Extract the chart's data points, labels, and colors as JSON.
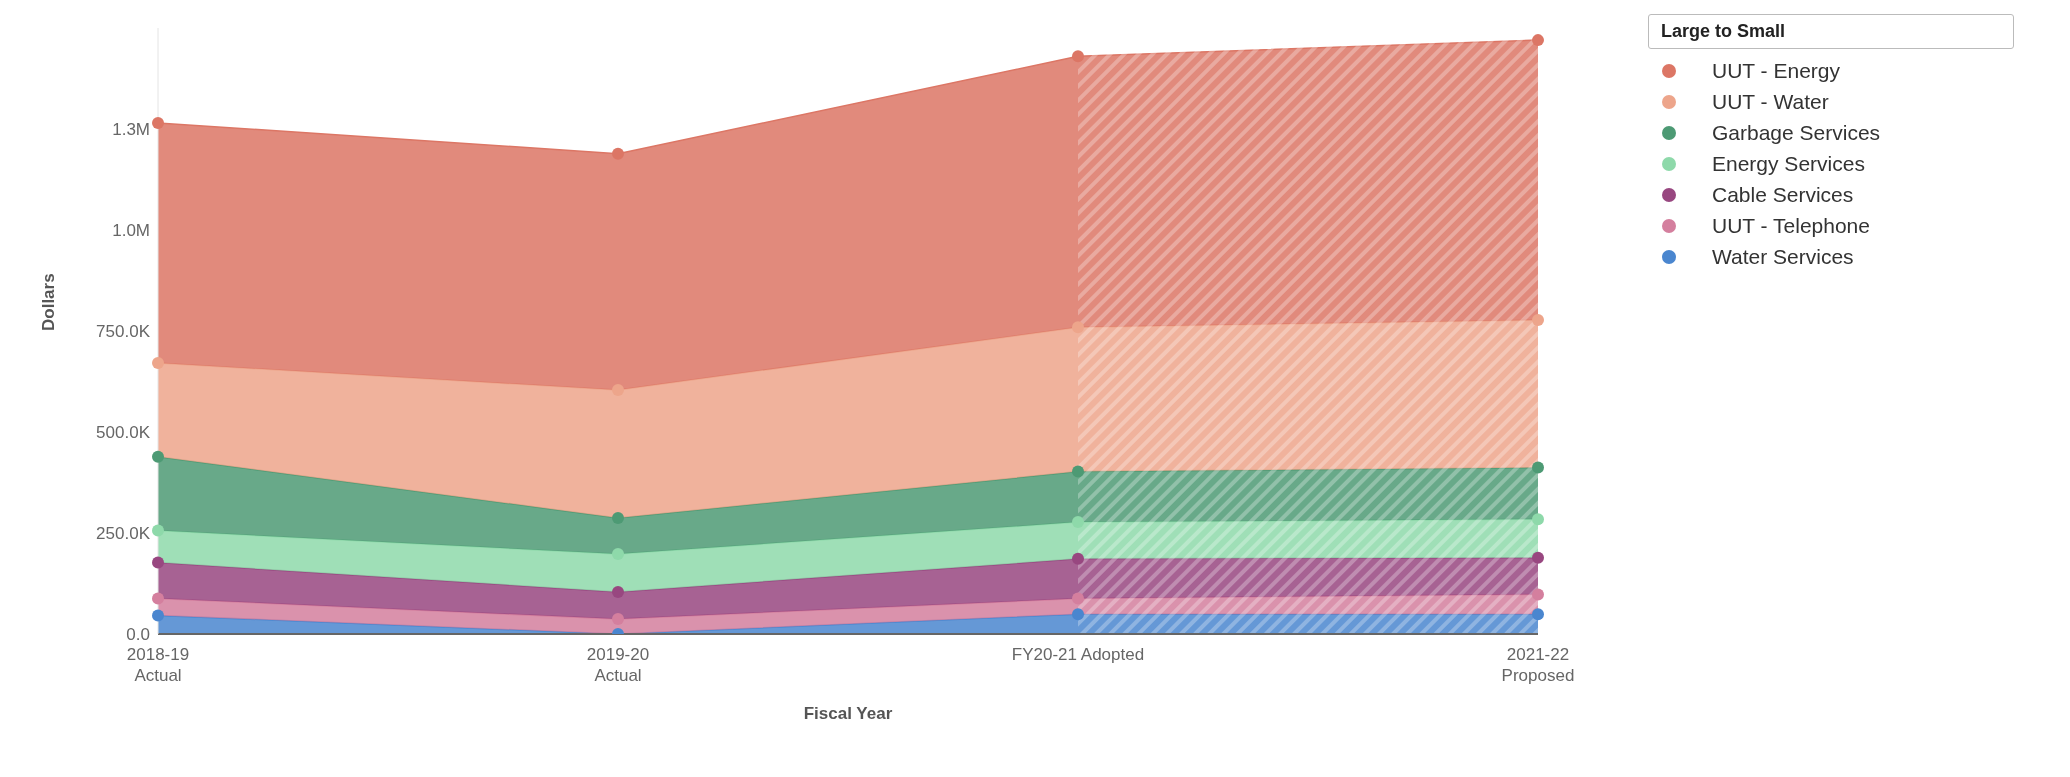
{
  "chart_data": {
    "type": "area",
    "stacked": true,
    "xlabel": "Fiscal Year",
    "ylabel": "Dollars",
    "legend_title": "Large to Small",
    "legend": "top right",
    "marker": "circle",
    "categories": [
      "2018-19\nActual",
      "2019-20\nActual",
      "FY20-21 Adopted",
      "2021-22\nProposed"
    ],
    "ylim": [
      0,
      1500000
    ],
    "yticks": [
      {
        "value": 0,
        "label": "0.0"
      },
      {
        "value": 250000,
        "label": "250.0K"
      },
      {
        "value": 500000,
        "label": "500.0K"
      },
      {
        "value": 750000,
        "label": "750.0K"
      },
      {
        "value": 1000000,
        "label": "1.0M"
      },
      {
        "value": 1250000,
        "label": "1.3M"
      }
    ],
    "bands": [
      {
        "axis": "x",
        "from": "FY20-21 Adopted",
        "to": "2021-22\nProposed",
        "color": "#ffffff"
      }
    ],
    "series": [
      {
        "name": "Water Services",
        "color": "#4a86cf",
        "values": [
          46000,
          0,
          49000,
          49000
        ]
      },
      {
        "name": "UUT - Telephone",
        "color": "#d47f9e",
        "values": [
          42000,
          37000,
          39000,
          49000
        ]
      },
      {
        "name": "Cable Services",
        "color": "#984780",
        "values": [
          89000,
          67000,
          98000,
          91000
        ]
      },
      {
        "name": "Energy Services",
        "color": "#8ed9aa",
        "values": [
          79000,
          94000,
          91000,
          95000
        ]
      },
      {
        "name": "Garbage Services",
        "color": "#4d9a74",
        "values": [
          183000,
          89000,
          125000,
          128000
        ]
      },
      {
        "name": "UUT - Water",
        "color": "#eda58b",
        "values": [
          232000,
          317000,
          357000,
          365000
        ]
      },
      {
        "name": "UUT - Energy",
        "color": "#dc7665",
        "values": [
          594000,
          585000,
          671000,
          693000
        ]
      }
    ]
  }
}
